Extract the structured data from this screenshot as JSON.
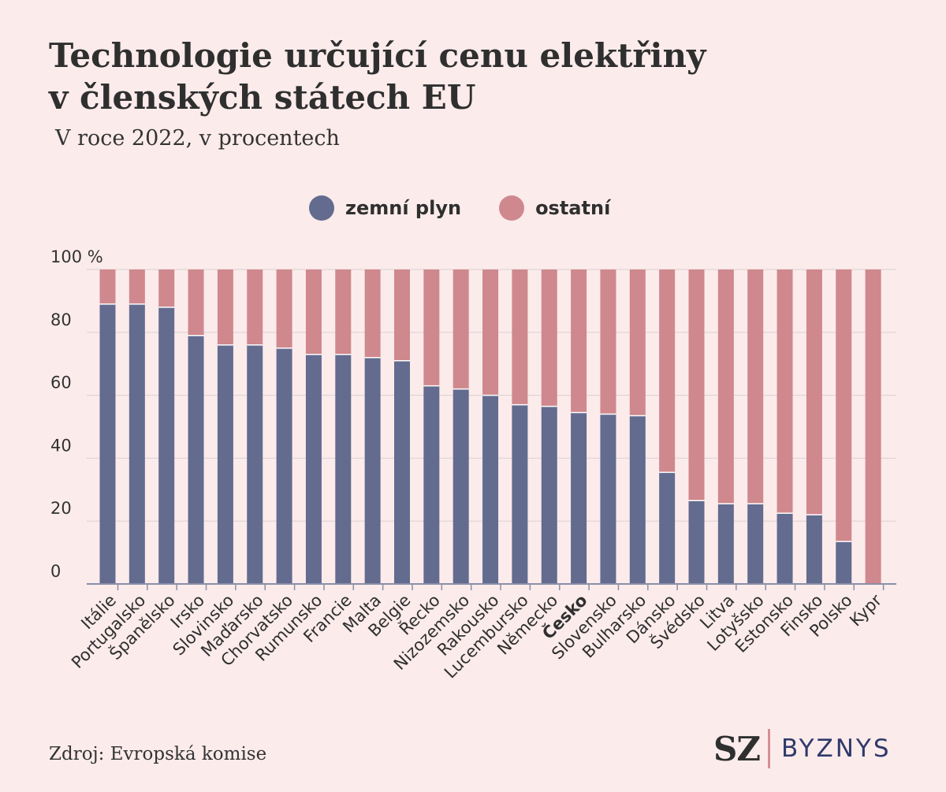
{
  "title_line1": "Technologie určující cenu elektřiny",
  "title_line2": "v členských státech EU",
  "subtitle": "V roce 2022, v procentech",
  "legend": [
    {
      "label": "zemní plyn",
      "color": "#636b8f"
    },
    {
      "label": "ostatní",
      "color": "#cf888d"
    }
  ],
  "source": "Zdroj: Evropská komise",
  "logo": {
    "mark": "SZ",
    "name": "BYZNYS"
  },
  "chart_data": {
    "type": "bar",
    "stacked": true,
    "highlighted_category": "Česko",
    "y_ticks": [
      "100 %",
      "80",
      "60",
      "40",
      "20",
      "0"
    ],
    "ylim": [
      0,
      100
    ],
    "categories": [
      "Itálie",
      "Portugalsko",
      "Španělsko",
      "Irsko",
      "Slovinsko",
      "Maďarsko",
      "Chorvatsko",
      "Rumunsko",
      "Francie",
      "Malta",
      "Belgie",
      "Řecko",
      "Nizozemsko",
      "Rakousko",
      "Lucembursko",
      "Německo",
      "Česko",
      "Slovensko",
      "Bulharsko",
      "Dánsko",
      "Švédsko",
      "Litva",
      "Lotyšsko",
      "Estonsko",
      "Finsko",
      "Polsko",
      "Kypr"
    ],
    "series": [
      {
        "name": "zemní plyn",
        "color": "#636b8f",
        "values": [
          89,
          89,
          88,
          79,
          76,
          76,
          75,
          73,
          73,
          72,
          71,
          63,
          62,
          60,
          57,
          56.5,
          54.5,
          54,
          53.5,
          35.5,
          26.5,
          25.5,
          25.5,
          22.5,
          22,
          13.5,
          0
        ]
      },
      {
        "name": "ostatní",
        "color": "#cf888d",
        "values": [
          11,
          11,
          12,
          21,
          24,
          24,
          25,
          27,
          27,
          28,
          29,
          37,
          38,
          40,
          43,
          43.5,
          45.5,
          46,
          46.5,
          64.5,
          73.5,
          74.5,
          74.5,
          77.5,
          78,
          86.5,
          100
        ]
      }
    ]
  }
}
